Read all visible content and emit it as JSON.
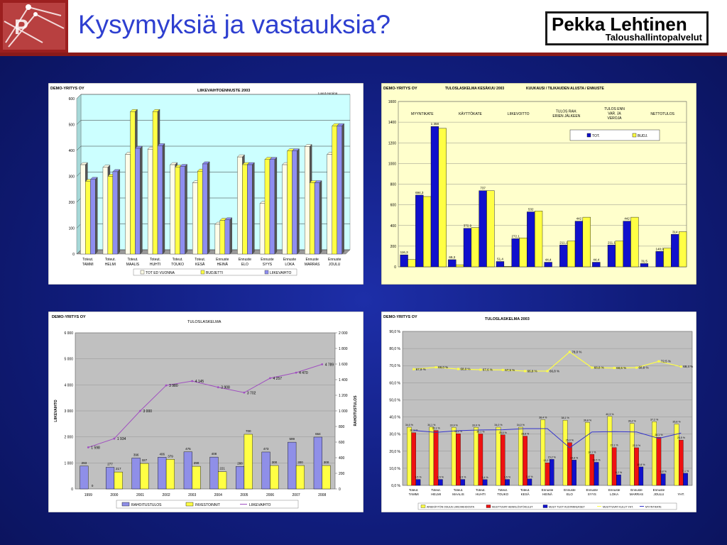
{
  "slide": {
    "title": "Kysymyksiä ja vastauksia?",
    "logo_main": "Pekka Lehtinen",
    "logo_sub": "Taloushallintopalvelut",
    "colors": {
      "header_rule": "#8a1a1a",
      "title": "#2e3fd0",
      "background": "#141f8c"
    }
  },
  "chart_data": [
    {
      "type": "bar",
      "company": "DEMO-YRITYS OY",
      "title": "LIIKEVAIHTOENNUSTE     2003",
      "note": "Luvut euroina",
      "categories": [
        [
          "Toteut.",
          "TAMMI"
        ],
        [
          "Toteut.",
          "HELMI"
        ],
        [
          "Toteut.",
          "MAALIS"
        ],
        [
          "Toteut.",
          "HUHTI"
        ],
        [
          "Toteut.",
          "TOUKO"
        ],
        [
          "Toteut.",
          "KESÄ"
        ],
        [
          "Ennuste",
          "HEINÄ"
        ],
        [
          "Ennuste",
          "ELO"
        ],
        [
          "Ennuste",
          "SYYS"
        ],
        [
          "Ennuste",
          "LOKA"
        ],
        [
          "Ennuste",
          "MARRAS"
        ],
        [
          "Ennuste",
          "JOULU"
        ]
      ],
      "ylim": [
        0,
        600
      ],
      "yticks": [
        0,
        100,
        200,
        300,
        400,
        500,
        600
      ],
      "series": [
        {
          "name": "TOT ED VUONNA",
          "color": "#fffde8",
          "values": [
            345,
            335,
            385,
            405,
            345,
            275,
            115,
            375,
            195,
            345,
            415,
            385
          ]
        },
        {
          "name": "BUDJETTI",
          "color": "#ffff44",
          "values": [
            280,
            300,
            550,
            550,
            335,
            320,
            130,
            345,
            365,
            398,
            275,
            495
          ]
        },
        {
          "name": "LIIKEVAIHTO",
          "color": "#8e8ef0",
          "values": [
            288,
            318,
            408,
            418,
            338,
            348,
            132,
            345,
            365,
            398,
            275,
            495
          ]
        }
      ]
    },
    {
      "type": "bar",
      "company": "DEMO-YRITYS OY",
      "title": "TULOSLASKELMA  KESÄKUU  2003",
      "subtitle": "KUUKAUSI / TILIKAUDEN ALUSTA / ENNUSTE",
      "categories": [
        "MYYNTIKATE",
        "KÄYTTÖKATE",
        "LIIKEVOITTO",
        "TULOS RAH. ERIEN JÄLKEEN",
        "TULOS ENN VAR. JA VEROJA",
        "NETTOTULOS"
      ],
      "category_labels": [
        [
          "MYYNTIKATE"
        ],
        [
          "KÄYTTÖKATE"
        ],
        [
          "LIIKEVOITTO"
        ],
        [
          "TULOS RAH.",
          "ERIEN JÄLKEEN"
        ],
        [
          "TULOS ENN",
          "VAR. JA",
          "VEROJA"
        ],
        [
          "NETTOTULOS"
        ]
      ],
      "groups": [
        {
          "tot": [
            116.3,
            694.3,
            1358
          ],
          "budj": [
            70,
            680,
            1340
          ],
          "labels": [
            "116,3",
            "694,3",
            "1 358"
          ]
        },
        {
          "tot": [
            69.3,
            372.9,
            737
          ],
          "budj": [
            20,
            380,
            737
          ],
          "labels": [
            "69,3",
            "372,9",
            "737"
          ]
        },
        {
          "tot": [
            51.4,
            272.1,
            532
          ],
          "budj": [
            5,
            280,
            540
          ],
          "labels": [
            "51,4",
            "272,1",
            "532"
          ]
        },
        {
          "tot": [
            44.4,
            211.1,
            442
          ],
          "budj": [
            0,
            250,
            480
          ],
          "labels": [
            "44,4",
            "211,1",
            "442"
          ]
        },
        {
          "tot": [
            44.4,
            211.1,
            442
          ],
          "budj": [
            0,
            250,
            480
          ],
          "labels": [
            "44,4",
            "211,1",
            "442"
          ]
        },
        {
          "tot": [
            31.5,
            148.9,
            314
          ],
          "budj": [
            0,
            180,
            340
          ],
          "labels": [
            "31,5",
            "148,9",
            "314"
          ]
        }
      ],
      "ylim": [
        0,
        1600
      ],
      "yticks": [
        0,
        200,
        400,
        600,
        800,
        1000,
        1200,
        1400,
        1600
      ],
      "legend": [
        {
          "name": "TOT.",
          "color": "#1010cc"
        },
        {
          "name": "BUDJ.",
          "color": "#ffff44"
        }
      ]
    },
    {
      "type": "bar",
      "company": "DEMO-YRITYS OY",
      "title": "TULOSLASKELMA",
      "categories": [
        "1999",
        "2000",
        "2001",
        "2002",
        "2003",
        "2004",
        "2005",
        "2006",
        "2007",
        "2008"
      ],
      "ylabel": "LIIKEVAIHTO",
      "y2label": "RAHOITUSTULOS",
      "ylim": [
        0,
        6000
      ],
      "yticks": [
        0,
        1000,
        2000,
        3000,
        4000,
        5000,
        6000
      ],
      "ytick_labels": [
        "0",
        "1 000",
        "2 000",
        "3 000",
        "4 000",
        "5 000",
        "6 000"
      ],
      "y2lim": [
        0,
        2000
      ],
      "y2ticks": [
        0,
        200,
        400,
        600,
        800,
        1000,
        1200,
        1400,
        1600,
        1800,
        2000
      ],
      "y2tick_labels": [
        "0",
        "200",
        "400",
        "600",
        "800",
        "1 000",
        "1 200",
        "1 400",
        "1 600",
        "1 800",
        "2 000"
      ],
      "series": [
        {
          "name": "RAHOITUSTULOS",
          "color": "#8f8fe8",
          "values": [
            293,
            277,
            396,
            406,
            475,
            408,
            288,
            473,
            599,
            664
          ],
          "labels": [
            "293",
            "277",
            "396",
            "406",
            "475",
            "408",
            "288",
            "473",
            "599",
            "664"
          ]
        },
        {
          "name": "INVESTOINNIT",
          "color": "#ffff44",
          "values": [
            0,
            217,
            327,
            379,
            290,
            221,
            700,
            300,
            300,
            300
          ],
          "labels": [
            "0",
            "217",
            "327",
            "379",
            "290",
            "221",
            "700",
            "300",
            "300",
            "300"
          ]
        },
        {
          "name": "LIIKEVAIHTO",
          "color": "#a050c0",
          "values": [
            1598,
            1934,
            3000,
            3980,
            4145,
            3908,
            3702,
            4257,
            4470,
            4789
          ],
          "labels": [
            "1 598",
            "1 934",
            "3 000",
            "3 980",
            "4 145",
            "3 908",
            "3 702",
            "4 257",
            "4 470",
            "4 789"
          ]
        }
      ]
    },
    {
      "type": "bar",
      "company": "DEMO-YRITYS OY",
      "title": "TULOSLASKELMA  2003",
      "categories": [
        [
          "Toteut.",
          "TAMMI"
        ],
        [
          "Toteut.",
          "HELMI"
        ],
        [
          "Toteut.",
          "MAALIS"
        ],
        [
          "Toteut.",
          "HUHTI"
        ],
        [
          "Toteut.",
          "TOUKO"
        ],
        [
          "Toteut.",
          "KESÄ"
        ],
        [
          "Ennuste",
          "HEINÄ"
        ],
        [
          "Ennuste",
          "ELO"
        ],
        [
          "Ennuste",
          "SYYS"
        ],
        [
          "Ennuste",
          "LOKA"
        ],
        [
          "Ennuste",
          "MARRAS"
        ],
        [
          "Ennuste",
          "JOULU"
        ],
        [
          "",
          "YHT."
        ]
      ],
      "ylim": [
        0,
        90
      ],
      "yticks": [
        0,
        10,
        20,
        30,
        40,
        50,
        60,
        70,
        80,
        90
      ],
      "ytick_labels": [
        "0,0 %",
        "10,0 %",
        "20,0 %",
        "30,0 %",
        "40,0 %",
        "50,0 %",
        "60,0 %",
        "70,0 %",
        "80,0 %",
        "90,0 %"
      ],
      "series": [
        {
          "name": "AINEKÄYTÖN OSUUS LIIKEVAIHDOSTA",
          "color": "#ffff44",
          "values": [
            34.0,
            34.1,
            33.9,
            33.9,
            34.0,
            34.0,
            38.4,
            38.1,
            36.8,
            40.3,
            36.2,
            37.2,
            35.8
          ],
          "labels": [
            "34,0 %",
            "34,1 %",
            "33,9 %",
            "33,9 %",
            "34,0 %",
            "34,0 %",
            "38,4 %",
            "38,1 %",
            "36,8 %",
            "40,3 %",
            "36,2 %",
            "37,2 %",
            "35,8 %"
          ]
        },
        {
          "name": "MUUTTUVAT HENKILÖSTÖKULUT",
          "color": "#ee1111",
          "values": [
            30.8,
            32.1,
            30.2,
            30.1,
            29.5,
            28.8,
            13.2,
            25.0,
            18.1,
            22.1,
            22.0,
            28.1,
            26.5
          ],
          "labels": [
            "30,8 %",
            "32,1 %",
            "30,2 %",
            "30,1 %",
            "29,5 %",
            "28,8 %",
            "13,2 %",
            "25,0 %",
            "18,1 %",
            "22,1 %",
            "22,0 %",
            "28,1 %",
            "26,5 %"
          ]
        },
        {
          "name": "MUUT TUOT KUSTANNUKSET",
          "color": "#1010cc",
          "values": [
            3.5,
            3.5,
            3.5,
            3.4,
            3.5,
            3.8,
            15.2,
            14.8,
            13.5,
            6.2,
            10.8,
            6.8,
            7.1
          ],
          "labels": [
            "3,5 %",
            "3,5 %",
            "3,5 %",
            "3,4 %",
            "3,5 %",
            "3,8 %",
            "15,2 %",
            "14,8 %",
            "13,5 %",
            "6,2 %",
            "10,8 %",
            "6,8 %",
            "7,1 %"
          ]
        },
        {
          "name": "MUUTTUVAT KULUT YHT.",
          "color": "#ffff44",
          "line": true,
          "values": [
            67.9,
            69.0,
            68.0,
            67.6,
            67.5,
            66.8,
            66.8,
            78.0,
            68.8,
            68.6,
            68.8,
            72.5,
            69.4
          ],
          "labels": [
            "67,9 %",
            "69,0 %",
            "68,0 %",
            "67,6 %",
            "67,5 %",
            "66,8 %",
            "66,8 %",
            "78,0 %",
            "68,8 %",
            "68,6 %",
            "68,8 %",
            "72,5 %",
            "69,4 %"
          ]
        },
        {
          "name": "MYYNTIKATE",
          "color": "#3333cc",
          "line": true,
          "values": [
            32.1,
            31.0,
            32.0,
            32.4,
            32.5,
            33.2,
            33.2,
            22.0,
            31.2,
            31.4,
            31.2,
            27.5,
            30.6
          ]
        }
      ]
    }
  ]
}
